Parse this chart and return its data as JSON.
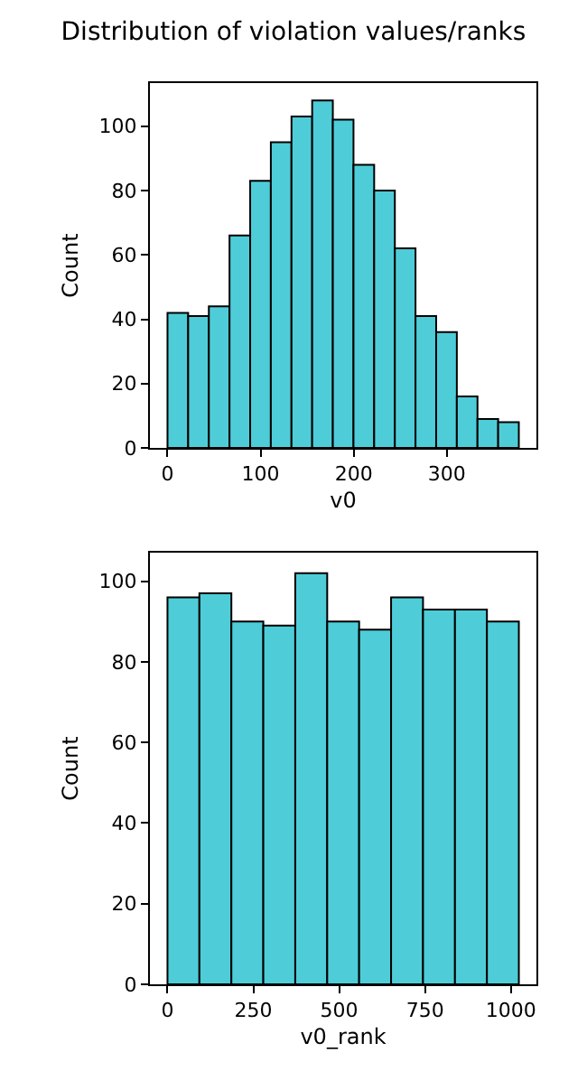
{
  "chart_data": [
    {
      "type": "histogram",
      "title": "Distribution of violation values/ranks",
      "xlabel": "v0",
      "ylabel": "Count",
      "color": "#4ecdd8",
      "bins": [
        0,
        22.2,
        44.4,
        66.6,
        88.8,
        111,
        133.2,
        155.4,
        177.6,
        199.8,
        222,
        244.2,
        266.4,
        288.6,
        310.8,
        333,
        355.2,
        377.4
      ],
      "values": [
        42,
        41,
        44,
        66,
        83,
        95,
        103,
        108,
        102,
        88,
        80,
        62,
        41,
        36,
        16,
        9,
        8
      ],
      "xlim": [
        -18.9,
        396.3
      ],
      "xticks": [
        0,
        100,
        200,
        300
      ],
      "ylim": [
        0,
        113.4
      ],
      "yticks": [
        0,
        20,
        40,
        60,
        80,
        100
      ],
      "grid": false,
      "legend": false
    },
    {
      "type": "histogram",
      "xlabel": "v0_rank",
      "ylabel": "Count",
      "color": "#4ecdd8",
      "bins": [
        0,
        93,
        186,
        279,
        372,
        465,
        558,
        651,
        744,
        837,
        930,
        1023
      ],
      "values": [
        96,
        97,
        90,
        89,
        102,
        90,
        88,
        96,
        93,
        93,
        90
      ],
      "xlim": [
        -51.15,
        1074.15
      ],
      "xticks": [
        0,
        250,
        500,
        750,
        1000
      ],
      "ylim": [
        0,
        107.1
      ],
      "yticks": [
        0,
        20,
        40,
        60,
        80,
        100
      ],
      "grid": false,
      "legend": false
    }
  ]
}
